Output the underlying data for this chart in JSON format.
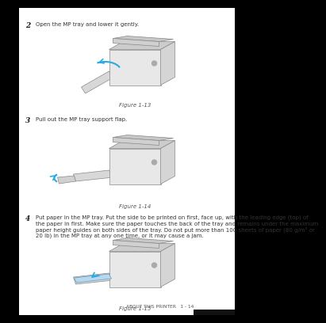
{
  "outer_bg": "#000000",
  "page_bg": "#ffffff",
  "text_color": "#333333",
  "step_num_color": "#222222",
  "label_color": "#555555",
  "footer_text": "ABOUT THIS PRINTER   1 - 14",
  "footer_bar_color": "#111111",
  "step2_number": "2",
  "step2_text": "Open the MP tray and lower it gently.",
  "fig1_label": "Figure 1-13",
  "step3_number": "3",
  "step3_text": "Pull out the MP tray support flap.",
  "fig2_label": "Figure 1-14",
  "step4_number": "4",
  "step4_text_line1": "Put paper in the MP tray. Put the side to be printed on first, face up, with the leading edge (top) of",
  "step4_text_line2": "the paper in first. Make sure the paper touches the back of the tray and remains under the maximum",
  "step4_text_line3": "paper height guides on both sides of the tray. Do not put more than 100 sheets of paper (80 g/m² or",
  "step4_text_line4": "20 lb) in the MP tray at any one time, or it may cause a jam.",
  "fig3_label": "Figure 1-15",
  "arrow_color": "#29abe2",
  "printer_body_color": "#e8e8e8",
  "printer_edge_color": "#888888",
  "printer_dark_color": "#cccccc",
  "paper_color": "#b8d8f0",
  "tray_color": "#d8d8d8",
  "step_num_fontsize": 6.5,
  "step_text_fontsize": 5.0,
  "fig_label_fontsize": 5.0,
  "footer_fontsize": 4.2
}
